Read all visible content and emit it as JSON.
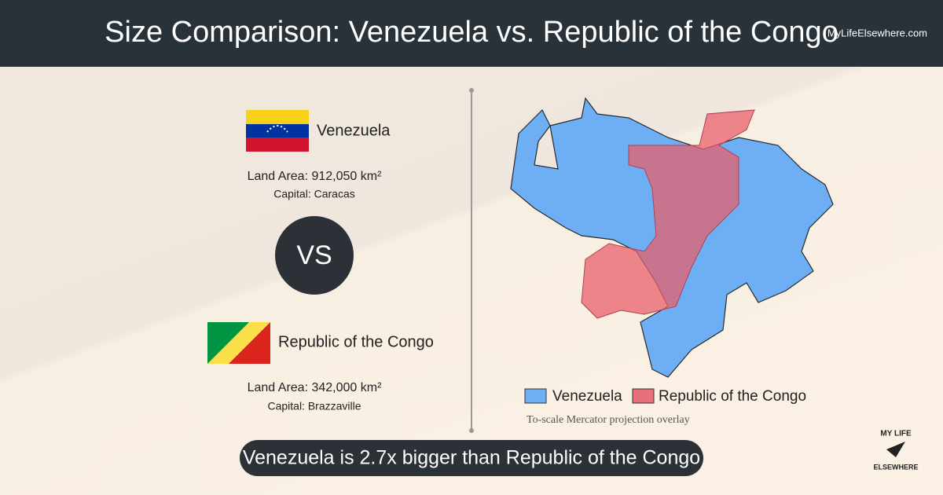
{
  "header": {
    "title": "Size Comparison: Venezuela vs. Republic of the Congo",
    "site": "MyLifeElsewhere.com"
  },
  "countries": [
    {
      "name": "Venezuela",
      "land_area": "Land Area: 912,050 km²",
      "capital": "Capital: Caracas"
    },
    {
      "name": "Republic of the Congo",
      "land_area": "Land Area: 342,000 km²",
      "capital": "Capital: Brazzaville"
    }
  ],
  "vs": "VS",
  "map": {
    "legend": [
      "Venezuela",
      "Republic of the Congo"
    ],
    "note": "To-scale Mercator projection overlay"
  },
  "summary": "Venezuela is 2.7x bigger than Republic of the Congo",
  "logo": {
    "top": "MY LIFE",
    "bottom": "ELSEWHERE"
  }
}
